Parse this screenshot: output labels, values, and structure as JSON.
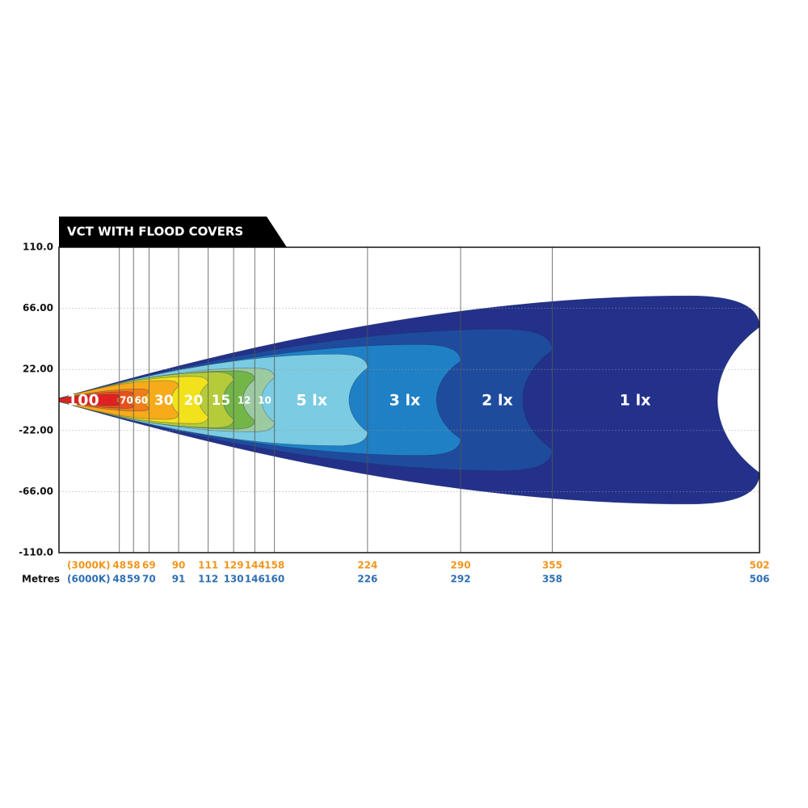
{
  "chart_data": {
    "type": "isolux",
    "title": "VCT WITH FLOOD COVERS",
    "x_label": "Metres",
    "row_labels": [
      "(3000K)",
      "(6000K)"
    ],
    "ylim": [
      -110,
      110
    ],
    "yticks": [
      {
        "value": 110,
        "label": "110.0"
      },
      {
        "value": 66,
        "label": "66.00"
      },
      {
        "value": 22,
        "label": "22.00"
      },
      {
        "value": -22,
        "label": "-22.00"
      },
      {
        "value": -66,
        "label": "-66.00"
      },
      {
        "value": -110,
        "label": "-110.0"
      }
    ],
    "grid": true,
    "zones": [
      {
        "label": "100",
        "distance_3000k": 48,
        "distance_6000k": 48,
        "spread": 4,
        "color": "#e02121"
      },
      {
        "label": "70",
        "distance_3000k": 58,
        "distance_6000k": 59,
        "spread": 6,
        "color": "#e8501b"
      },
      {
        "label": "60",
        "distance_3000k": 69,
        "distance_6000k": 70,
        "spread": 8,
        "color": "#f07d1b"
      },
      {
        "label": "30",
        "distance_3000k": 90,
        "distance_6000k": 91,
        "spread": 14,
        "color": "#f7ab1b"
      },
      {
        "label": "20",
        "distance_3000k": 111,
        "distance_6000k": 112,
        "spread": 17,
        "color": "#f2e21b"
      },
      {
        "label": "15",
        "distance_3000k": 129,
        "distance_6000k": 130,
        "spread": 20,
        "color": "#b6cb3a"
      },
      {
        "label": "12",
        "distance_3000k": 144,
        "distance_6000k": 146,
        "spread": 21,
        "color": "#74b548"
      },
      {
        "label": "10",
        "distance_3000k": 158,
        "distance_6000k": 160,
        "spread": 23,
        "color": "#9ccba2"
      },
      {
        "label": "5 lx",
        "distance_3000k": 224,
        "distance_6000k": 226,
        "spread": 33,
        "color": "#7bcbe2"
      },
      {
        "label": "3 lx",
        "distance_3000k": 290,
        "distance_6000k": 292,
        "spread": 40,
        "color": "#1f80c5"
      },
      {
        "label": "2 lx",
        "distance_3000k": 355,
        "distance_6000k": 358,
        "spread": 51,
        "color": "#1f4b9d"
      },
      {
        "label": "1 lx",
        "distance_3000k": 502,
        "distance_6000k": 506,
        "spread": 75,
        "color": "#24318a"
      }
    ]
  }
}
